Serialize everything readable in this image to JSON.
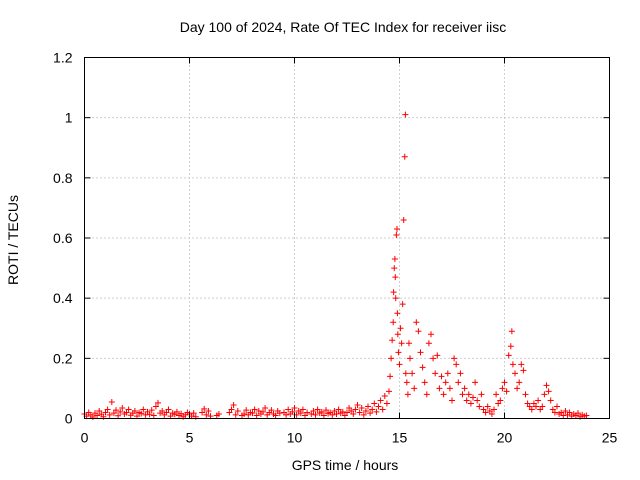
{
  "chart_data": {
    "type": "scatter",
    "title": "Day 100 of 2024, Rate Of TEC Index for receiver iisc",
    "xlabel": "GPS time / hours",
    "ylabel": "ROTI / TECUs",
    "xlim": [
      0,
      25
    ],
    "ylim": [
      0,
      1.2
    ],
    "xticks": [
      0,
      5,
      10,
      15,
      20,
      25
    ],
    "xtick_labels": [
      "0",
      "5",
      "10",
      "15",
      "20",
      "25"
    ],
    "yticks": [
      0,
      0.2,
      0.4,
      0.6,
      0.8,
      1.0,
      1.2
    ],
    "ytick_labels": [
      "0",
      "0.2",
      "0.4",
      "0.6",
      "0.8",
      "1",
      "1.2"
    ],
    "grid": true,
    "marker": "+",
    "series": [
      {
        "name": "iisc",
        "color": "#ff0000",
        "points": [
          [
            0.0,
            0.015
          ],
          [
            0.1,
            0.008
          ],
          [
            0.2,
            0.02
          ],
          [
            0.3,
            0.012
          ],
          [
            0.4,
            0.005
          ],
          [
            0.5,
            0.018
          ],
          [
            0.6,
            0.01
          ],
          [
            0.7,
            0.025
          ],
          [
            0.8,
            0.014
          ],
          [
            0.9,
            0.006
          ],
          [
            1.0,
            0.02
          ],
          [
            1.1,
            0.03
          ],
          [
            1.2,
            0.012
          ],
          [
            1.3,
            0.055
          ],
          [
            1.4,
            0.018
          ],
          [
            1.5,
            0.028
          ],
          [
            1.6,
            0.009
          ],
          [
            1.7,
            0.022
          ],
          [
            1.8,
            0.035
          ],
          [
            1.9,
            0.015
          ],
          [
            2.0,
            0.02
          ],
          [
            2.1,
            0.03
          ],
          [
            2.2,
            0.011
          ],
          [
            2.3,
            0.018
          ],
          [
            2.4,
            0.025
          ],
          [
            2.5,
            0.008
          ],
          [
            2.6,
            0.02
          ],
          [
            2.7,
            0.016
          ],
          [
            2.8,
            0.03
          ],
          [
            2.9,
            0.012
          ],
          [
            3.0,
            0.022
          ],
          [
            3.1,
            0.014
          ],
          [
            3.2,
            0.028
          ],
          [
            3.3,
            0.01
          ],
          [
            3.4,
            0.04
          ],
          [
            3.5,
            0.052
          ],
          [
            3.6,
            0.018
          ],
          [
            3.7,
            0.025
          ],
          [
            3.8,
            0.012
          ],
          [
            3.9,
            0.02
          ],
          [
            4.0,
            0.03
          ],
          [
            4.1,
            0.008
          ],
          [
            4.2,
            0.018
          ],
          [
            4.3,
            0.014
          ],
          [
            4.4,
            0.022
          ],
          [
            4.5,
            0.01
          ],
          [
            4.6,
            0.016
          ],
          [
            4.7,
            0.006
          ],
          [
            4.8,
            0.012
          ],
          [
            4.9,
            0.02
          ],
          [
            5.0,
            0.015
          ],
          [
            5.1,
            0.008
          ],
          [
            5.2,
            0.018
          ],
          [
            5.3,
            0.006
          ],
          [
            5.6,
            0.02
          ],
          [
            5.7,
            0.032
          ],
          [
            5.8,
            0.012
          ],
          [
            5.9,
            0.025
          ],
          [
            6.0,
            0.008
          ],
          [
            6.3,
            0.01
          ],
          [
            6.4,
            0.015
          ],
          [
            6.9,
            0.02
          ],
          [
            7.0,
            0.03
          ],
          [
            7.1,
            0.045
          ],
          [
            7.2,
            0.012
          ],
          [
            7.3,
            0.025
          ],
          [
            7.5,
            0.01
          ],
          [
            7.6,
            0.015
          ],
          [
            7.7,
            0.028
          ],
          [
            7.8,
            0.012
          ],
          [
            7.9,
            0.02
          ],
          [
            8.0,
            0.018
          ],
          [
            8.1,
            0.03
          ],
          [
            8.2,
            0.01
          ],
          [
            8.3,
            0.025
          ],
          [
            8.4,
            0.015
          ],
          [
            8.5,
            0.022
          ],
          [
            8.6,
            0.035
          ],
          [
            8.7,
            0.012
          ],
          [
            8.8,
            0.02
          ],
          [
            8.9,
            0.028
          ],
          [
            9.0,
            0.015
          ],
          [
            9.1,
            0.01
          ],
          [
            9.2,
            0.025
          ],
          [
            9.3,
            0.018
          ],
          [
            9.5,
            0.02
          ],
          [
            9.6,
            0.012
          ],
          [
            9.7,
            0.03
          ],
          [
            9.8,
            0.015
          ],
          [
            9.9,
            0.022
          ],
          [
            10.0,
            0.035
          ],
          [
            10.1,
            0.012
          ],
          [
            10.2,
            0.025
          ],
          [
            10.3,
            0.018
          ],
          [
            10.4,
            0.03
          ],
          [
            10.5,
            0.01
          ],
          [
            10.6,
            0.02
          ],
          [
            10.8,
            0.015
          ],
          [
            10.9,
            0.025
          ],
          [
            11.0,
            0.012
          ],
          [
            11.1,
            0.03
          ],
          [
            11.2,
            0.018
          ],
          [
            11.3,
            0.022
          ],
          [
            11.4,
            0.01
          ],
          [
            11.5,
            0.028
          ],
          [
            11.6,
            0.016
          ],
          [
            11.7,
            0.02
          ],
          [
            11.8,
            0.012
          ],
          [
            11.9,
            0.025
          ],
          [
            12.0,
            0.015
          ],
          [
            12.1,
            0.03
          ],
          [
            12.2,
            0.018
          ],
          [
            12.3,
            0.022
          ],
          [
            12.4,
            0.01
          ],
          [
            12.5,
            0.02
          ],
          [
            12.6,
            0.035
          ],
          [
            12.7,
            0.025
          ],
          [
            12.8,
            0.015
          ],
          [
            12.9,
            0.03
          ],
          [
            13.0,
            0.045
          ],
          [
            13.1,
            0.02
          ],
          [
            13.2,
            0.035
          ],
          [
            13.3,
            0.012
          ],
          [
            13.4,
            0.025
          ],
          [
            13.5,
            0.04
          ],
          [
            13.6,
            0.018
          ],
          [
            13.7,
            0.03
          ],
          [
            13.8,
            0.05
          ],
          [
            13.9,
            0.022
          ],
          [
            14.0,
            0.04
          ],
          [
            14.1,
            0.06
          ],
          [
            14.2,
            0.03
          ],
          [
            14.3,
            0.075
          ],
          [
            14.4,
            0.05
          ],
          [
            14.5,
            0.09
          ],
          [
            14.55,
            0.14
          ],
          [
            14.6,
            0.2
          ],
          [
            14.65,
            0.26
          ],
          [
            14.7,
            0.32
          ],
          [
            14.72,
            0.42
          ],
          [
            14.75,
            0.5
          ],
          [
            14.78,
            0.53
          ],
          [
            14.8,
            0.47
          ],
          [
            14.82,
            0.4
          ],
          [
            14.85,
            0.61
          ],
          [
            14.88,
            0.63
          ],
          [
            14.9,
            0.35
          ],
          [
            14.92,
            0.28
          ],
          [
            14.95,
            0.22
          ],
          [
            15.0,
            0.18
          ],
          [
            15.05,
            0.3
          ],
          [
            15.1,
            0.25
          ],
          [
            15.15,
            0.38
          ],
          [
            15.2,
            0.66
          ],
          [
            15.25,
            0.87
          ],
          [
            15.28,
            1.01
          ],
          [
            15.3,
            0.15
          ],
          [
            15.35,
            0.12
          ],
          [
            15.4,
            0.08
          ],
          [
            15.45,
            0.25
          ],
          [
            15.5,
            0.2
          ],
          [
            15.6,
            0.15
          ],
          [
            15.7,
            0.1
          ],
          [
            15.8,
            0.32
          ],
          [
            15.9,
            0.29
          ],
          [
            16.0,
            0.22
          ],
          [
            16.1,
            0.17
          ],
          [
            16.2,
            0.12
          ],
          [
            16.3,
            0.08
          ],
          [
            16.4,
            0.25
          ],
          [
            16.5,
            0.28
          ],
          [
            16.6,
            0.2
          ],
          [
            16.7,
            0.15
          ],
          [
            16.8,
            0.21
          ],
          [
            16.9,
            0.1
          ],
          [
            17.0,
            0.14
          ],
          [
            17.1,
            0.08
          ],
          [
            17.2,
            0.12
          ],
          [
            17.3,
            0.15
          ],
          [
            17.4,
            0.1
          ],
          [
            17.5,
            0.06
          ],
          [
            17.6,
            0.2
          ],
          [
            17.7,
            0.18
          ],
          [
            17.8,
            0.12
          ],
          [
            17.9,
            0.15
          ],
          [
            18.0,
            0.08
          ],
          [
            18.1,
            0.1
          ],
          [
            18.2,
            0.06
          ],
          [
            18.3,
            0.08
          ],
          [
            18.4,
            0.05
          ],
          [
            18.5,
            0.07
          ],
          [
            18.6,
            0.12
          ],
          [
            18.7,
            0.06
          ],
          [
            18.8,
            0.04
          ],
          [
            18.9,
            0.08
          ],
          [
            19.0,
            0.03
          ],
          [
            19.1,
            0.02
          ],
          [
            19.2,
            0.04
          ],
          [
            19.3,
            0.025
          ],
          [
            19.4,
            0.015
          ],
          [
            19.5,
            0.03
          ],
          [
            19.6,
            0.08
          ],
          [
            19.7,
            0.05
          ],
          [
            19.8,
            0.06
          ],
          [
            19.9,
            0.1
          ],
          [
            20.0,
            0.12
          ],
          [
            20.1,
            0.09
          ],
          [
            20.2,
            0.21
          ],
          [
            20.3,
            0.24
          ],
          [
            20.35,
            0.29
          ],
          [
            20.4,
            0.18
          ],
          [
            20.5,
            0.15
          ],
          [
            20.6,
            0.1
          ],
          [
            20.7,
            0.12
          ],
          [
            20.8,
            0.18
          ],
          [
            20.9,
            0.16
          ],
          [
            21.0,
            0.08
          ],
          [
            21.1,
            0.05
          ],
          [
            21.2,
            0.04
          ],
          [
            21.3,
            0.03
          ],
          [
            21.4,
            0.05
          ],
          [
            21.5,
            0.04
          ],
          [
            21.6,
            0.06
          ],
          [
            21.7,
            0.03
          ],
          [
            21.8,
            0.04
          ],
          [
            21.9,
            0.08
          ],
          [
            22.0,
            0.11
          ],
          [
            22.1,
            0.09
          ],
          [
            22.2,
            0.06
          ],
          [
            22.3,
            0.03
          ],
          [
            22.4,
            0.02
          ],
          [
            22.5,
            0.04
          ],
          [
            22.6,
            0.015
          ],
          [
            22.7,
            0.02
          ],
          [
            22.8,
            0.01
          ],
          [
            22.9,
            0.025
          ],
          [
            23.0,
            0.012
          ],
          [
            23.1,
            0.02
          ],
          [
            23.2,
            0.008
          ],
          [
            23.3,
            0.015
          ],
          [
            23.4,
            0.01
          ],
          [
            23.5,
            0.018
          ],
          [
            23.6,
            0.006
          ],
          [
            23.7,
            0.012
          ],
          [
            23.8,
            0.008
          ],
          [
            23.9,
            0.01
          ]
        ]
      }
    ]
  }
}
